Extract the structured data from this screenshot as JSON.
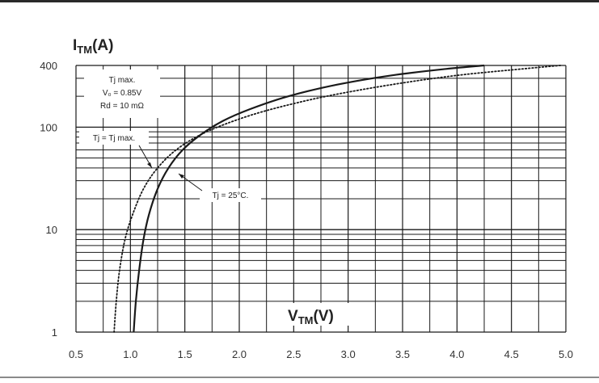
{
  "chart_data": {
    "type": "line",
    "ylabel": "ITM(A)",
    "ylabel_main": "I",
    "ylabel_sub": "TM",
    "ylabel_unit": "(A)",
    "xlabel": "VTM(V)",
    "xlabel_main": "V",
    "xlabel_sub": "TM",
    "xlabel_unit": "(V)",
    "xlim": [
      0.5,
      5.0
    ],
    "ylim": [
      1,
      400
    ],
    "y_scale": "log",
    "grid": true,
    "x_ticks": [
      "0.5",
      "1.0",
      "1.5",
      "2.0",
      "2.5",
      "3.0",
      "3.5",
      "4.0",
      "4.5",
      "5.0"
    ],
    "x_tick_values": [
      0.5,
      1.0,
      1.5,
      2.0,
      2.5,
      3.0,
      3.5,
      4.0,
      4.5,
      5.0
    ],
    "y_ticks": [
      "1",
      "10",
      "100",
      "400"
    ],
    "y_tick_values": [
      1,
      10,
      100,
      400
    ],
    "series": [
      {
        "name": "Tj = 25°C.",
        "style": "solid",
        "color": "#1a1a1a",
        "x": [
          1.03,
          1.05,
          1.08,
          1.12,
          1.17,
          1.25,
          1.35,
          1.48,
          1.65,
          1.85,
          2.1,
          2.45,
          2.9,
          3.4,
          3.9,
          4.25
        ],
        "y": [
          1,
          2,
          4,
          8,
          14,
          25,
          40,
          60,
          85,
          115,
          150,
          200,
          260,
          320,
          370,
          400
        ]
      },
      {
        "name": "Tj = Tj max.",
        "style": "dotted",
        "color": "#1a1a1a",
        "x": [
          0.85,
          0.87,
          0.9,
          0.95,
          1.02,
          1.12,
          1.25,
          1.42,
          1.65,
          1.95,
          2.3,
          2.8,
          3.4,
          4.0,
          4.6,
          4.95
        ],
        "y": [
          1,
          2,
          4,
          8,
          14,
          25,
          40,
          60,
          85,
          115,
          150,
          200,
          260,
          320,
          370,
          400
        ]
      }
    ],
    "annotations": {
      "box_line1": "Tj max.",
      "box_line2": "V₀ = 0.85V",
      "box_line3": "Rd = 10 mΩ",
      "tjmax_label": "Tj = Tj max.",
      "tj25_label": "Tj = 25°C."
    }
  }
}
